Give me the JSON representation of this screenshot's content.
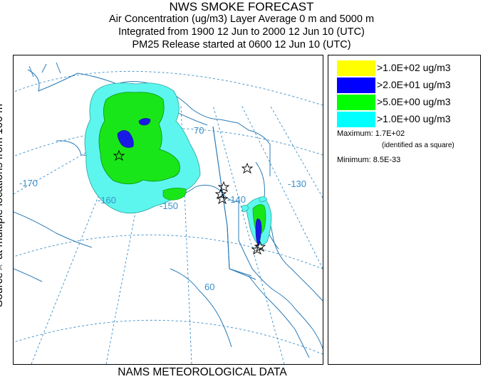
{
  "header": {
    "title": "NWS SMOKE FORECAST",
    "line1": "Air Concentration (ug/m3) Layer Average    0 m and  5000 m",
    "line2": "Integrated from 1900 12 Jun to 2000 12 Jun 10 (UTC)",
    "line3": "PM25 Release started at 0600 12 Jun 10 (UTC)"
  },
  "side_label": "Source☆ at multiple locations    from  100 m",
  "footer": "NAMS METEOROLOGICAL DATA",
  "map": {
    "graticule_labels": [
      "-170",
      "-160",
      "-150",
      "-140",
      "-130",
      "70",
      "60"
    ],
    "colors": {
      "coast": "#2b7cb8",
      "grid": "#3a8fc9",
      "label": "#3a8fc9",
      "cyan": "#5cf6ee",
      "green": "#19e619",
      "blue": "#1a1ae6"
    }
  },
  "legend": {
    "entries": [
      {
        "label": ">1.0E+02 ug/m3",
        "color": "#ffff00"
      },
      {
        "label": ">2.0E+01 ug/m3",
        "color": "#0000ff"
      },
      {
        "label": ">5.0E+00 ug/m3",
        "color": "#00ff00"
      },
      {
        "label": ">1.0E+00 ug/m3",
        "color": "#00ffff"
      }
    ],
    "maximum": "Maximum: 1.7E+02",
    "maximum_note": "(identified as a square)",
    "minimum": "Minimum: 8.5E-33"
  }
}
